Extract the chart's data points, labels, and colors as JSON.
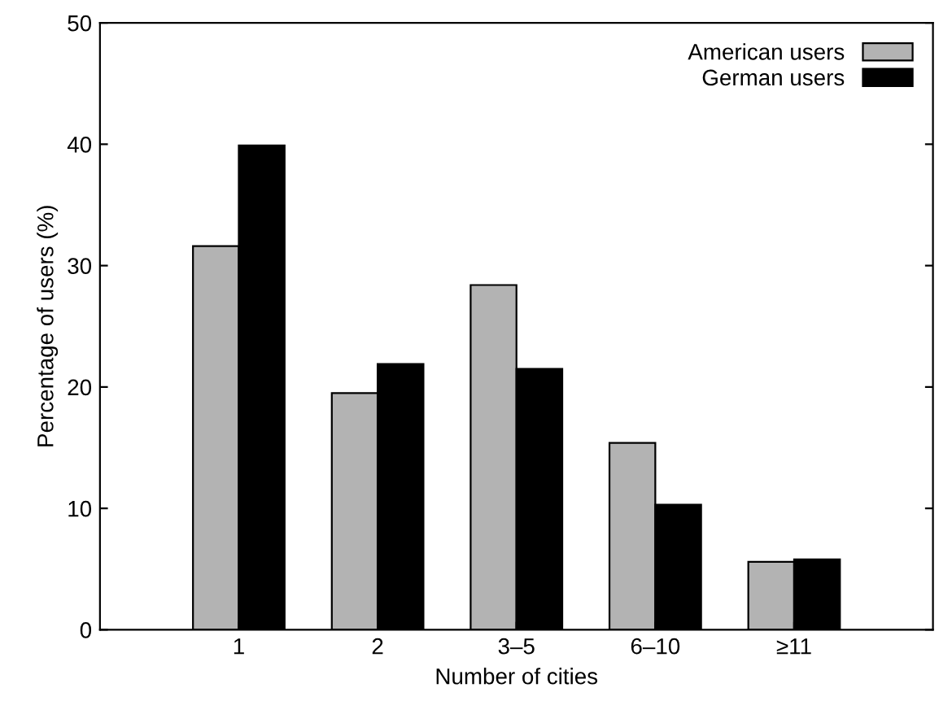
{
  "chart_data": {
    "type": "bar",
    "xlabel": "Number of cities",
    "ylabel": "Percentage of users (%)",
    "categories": [
      "1",
      "2",
      "3–5",
      "6–10",
      "≥11"
    ],
    "series": [
      {
        "name": "American users",
        "color": "#b3b3b3",
        "values": [
          31.6,
          19.5,
          28.4,
          15.4,
          5.6
        ]
      },
      {
        "name": "German users",
        "color": "#000000",
        "values": [
          39.9,
          21.9,
          21.5,
          10.3,
          5.8
        ]
      }
    ],
    "ylim": [
      0,
      50
    ],
    "yticks": [
      0,
      10,
      20,
      30,
      40,
      50
    ],
    "grid": false,
    "legend": "top right"
  }
}
